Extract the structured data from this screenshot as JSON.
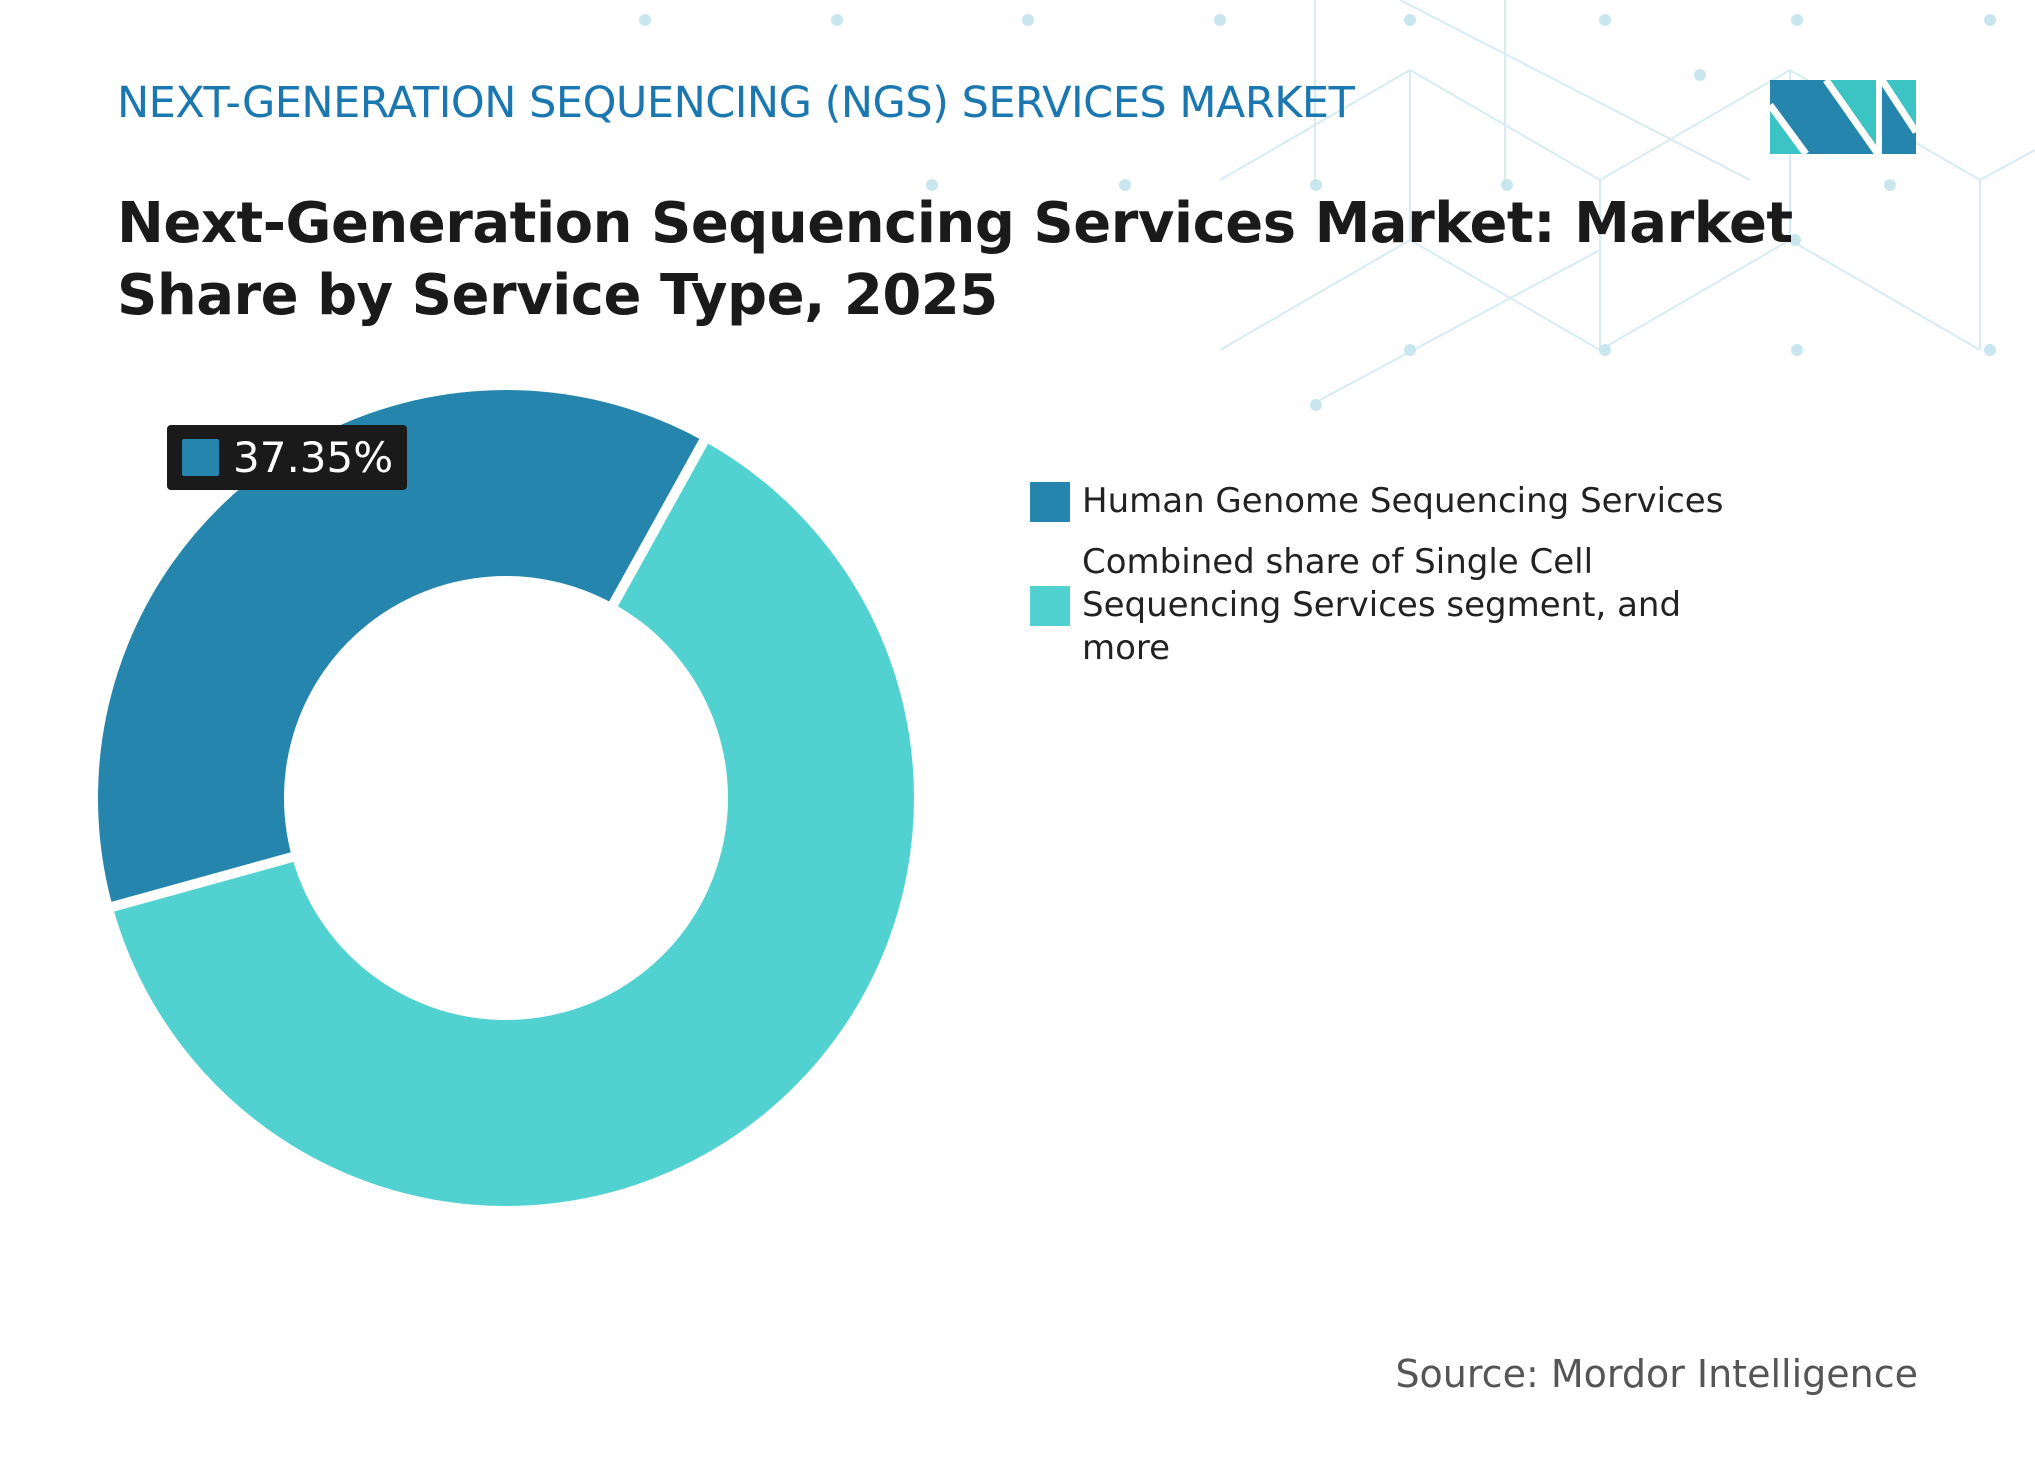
{
  "header": {
    "subtitle": "NEXT-GENERATION SEQUENCING (NGS) SERVICES MARKET",
    "title": "Next-Generation Sequencing Services Market: Market Share by Service Type, 2025"
  },
  "chart_data": {
    "type": "pie",
    "donut": true,
    "categories": [
      "Human Genome Sequencing Services",
      "Combined share of Single Cell Sequencing Services segment, and more"
    ],
    "values": [
      37.35,
      62.65
    ],
    "colors": [
      "#2585ac",
      "#52d1d1"
    ],
    "data_labels": [
      "37.35%"
    ],
    "legend_position": "right"
  },
  "source": "Source: Mordor Intelligence",
  "logo": "MN"
}
